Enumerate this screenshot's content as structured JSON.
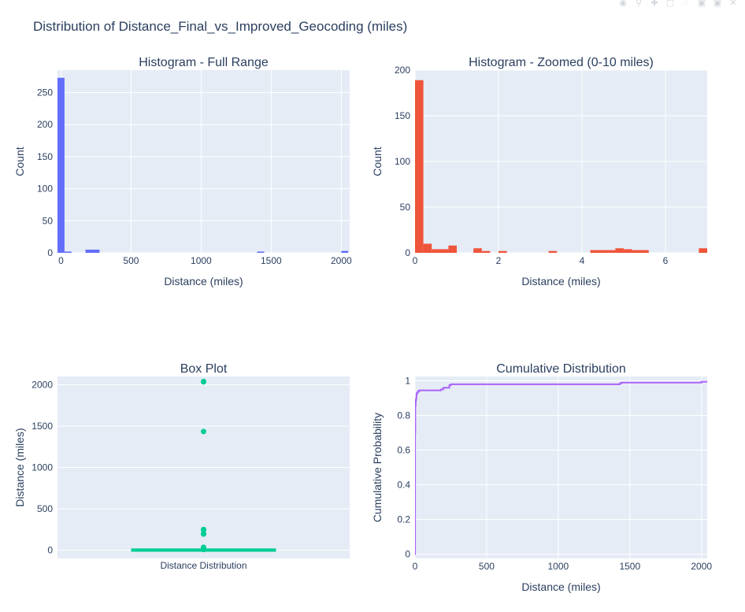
{
  "title": "Distribution of Distance_Final_vs_Improved_Geocoding (miles)",
  "colors": {
    "plot_bg": "#e5ecf6",
    "grid": "#ffffff",
    "text": "#2a3f5f",
    "hist_full": "#636efa",
    "hist_zoom": "#ef553b",
    "box": "#00cc96",
    "cdf": "#ab63fa"
  },
  "modebar": [
    {
      "icon": "camera-icon",
      "glyph": "◉"
    },
    {
      "icon": "zoom-icon",
      "glyph": "⚲"
    },
    {
      "icon": "pan-icon",
      "glyph": "✚"
    },
    {
      "icon": "box-select-icon",
      "glyph": "▢"
    },
    {
      "icon": "lasso-icon",
      "glyph": "◌"
    },
    {
      "icon": "zoom-in-icon",
      "glyph": "▣"
    },
    {
      "icon": "zoom-out-icon",
      "glyph": "▣"
    },
    {
      "icon": "autoscale-icon",
      "glyph": "✕"
    }
  ],
  "chart_data": [
    {
      "type": "bar",
      "title": "Histogram - Full Range",
      "xlabel": "Distance (miles)",
      "ylabel": "Count",
      "xlim": [
        -25,
        2060
      ],
      "ylim": [
        0,
        285
      ],
      "xticks": [
        0,
        500,
        1000,
        1500,
        2000
      ],
      "yticks": [
        0,
        50,
        100,
        150,
        200,
        250
      ],
      "bin_width": 50,
      "bins": [
        {
          "x0": -25,
          "x1": 25,
          "count": 273
        },
        {
          "x0": 25,
          "x1": 75,
          "count": 2
        },
        {
          "x0": 175,
          "x1": 225,
          "count": 5
        },
        {
          "x0": 225,
          "x1": 275,
          "count": 5
        },
        {
          "x0": 1400,
          "x1": 1450,
          "count": 2
        },
        {
          "x0": 2000,
          "x1": 2050,
          "count": 3
        }
      ]
    },
    {
      "type": "bar",
      "title": "Histogram - Zoomed (0-10 miles)",
      "xlabel": "Distance (miles)",
      "ylabel": "Count",
      "xlim": [
        0,
        7
      ],
      "ylim": [
        0,
        200
      ],
      "xticks": [
        0,
        2,
        4,
        6
      ],
      "yticks": [
        0,
        50,
        100,
        150,
        200
      ],
      "bins": [
        {
          "x0": 0.0,
          "x1": 0.2,
          "count": 189
        },
        {
          "x0": 0.2,
          "x1": 0.4,
          "count": 10
        },
        {
          "x0": 0.4,
          "x1": 0.8,
          "count": 4
        },
        {
          "x0": 0.8,
          "x1": 1.0,
          "count": 8
        },
        {
          "x0": 1.4,
          "x1": 1.6,
          "count": 5
        },
        {
          "x0": 1.6,
          "x1": 1.8,
          "count": 2
        },
        {
          "x0": 2.0,
          "x1": 2.2,
          "count": 2
        },
        {
          "x0": 3.2,
          "x1": 3.4,
          "count": 2
        },
        {
          "x0": 4.2,
          "x1": 4.8,
          "count": 3
        },
        {
          "x0": 4.8,
          "x1": 5.0,
          "count": 5
        },
        {
          "x0": 5.0,
          "x1": 5.2,
          "count": 4
        },
        {
          "x0": 5.2,
          "x1": 5.6,
          "count": 3
        },
        {
          "x0": 6.8,
          "x1": 7.0,
          "count": 5
        }
      ]
    },
    {
      "type": "box",
      "title": "Box Plot",
      "xlabel": "",
      "ylabel": "Distance (miles)",
      "category": "Distance Distribution",
      "ylim": [
        -100,
        2100
      ],
      "yticks": [
        0,
        500,
        1000,
        1500,
        2000
      ],
      "q1": 0.1,
      "median": 0.5,
      "q3": 2,
      "whisker_low": 0,
      "whisker_high": 5,
      "outliers": [
        2040,
        2035,
        1435,
        250,
        245,
        200,
        195,
        35,
        30,
        25,
        20,
        15,
        10,
        8
      ]
    },
    {
      "type": "line",
      "title": "Cumulative Distribution",
      "xlabel": "Distance (miles)",
      "ylabel": "Cumulative Probability",
      "xlim": [
        0,
        2040
      ],
      "ylim": [
        -0.025,
        1.025
      ],
      "xticks": [
        0,
        500,
        1000,
        1500,
        2000
      ],
      "yticks": [
        0,
        0.2,
        0.4,
        0.6,
        0.8,
        1
      ],
      "x": [
        0,
        0.5,
        2,
        5,
        8,
        10,
        12,
        20,
        30,
        180,
        195,
        200,
        240,
        250,
        1430,
        1440,
        2000,
        2040
      ],
      "y": [
        0,
        0.7,
        0.86,
        0.89,
        0.9,
        0.92,
        0.93,
        0.94,
        0.945,
        0.95,
        0.955,
        0.96,
        0.975,
        0.98,
        0.985,
        0.99,
        0.995,
        1.0
      ]
    }
  ]
}
